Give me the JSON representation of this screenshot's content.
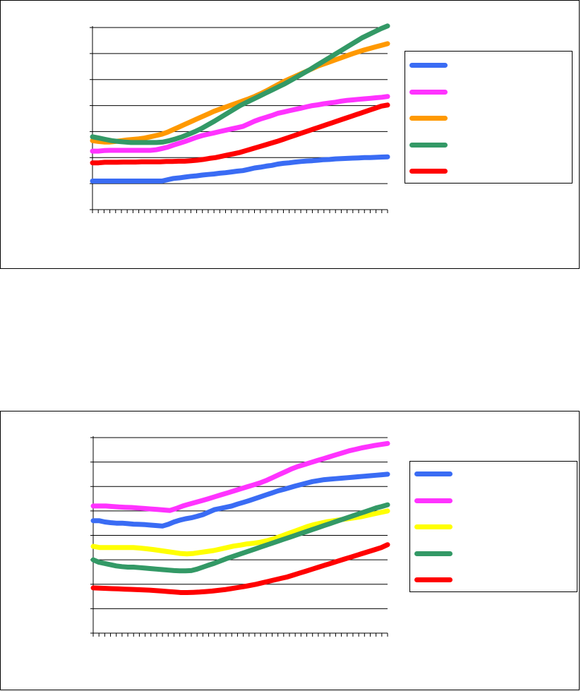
{
  "chart_data": [
    {
      "type": "line",
      "title": "",
      "xlabel": "",
      "ylabel": "",
      "x_count": 52,
      "ylim": [
        0,
        7
      ],
      "grid": true,
      "legend": "right",
      "series": [
        {
          "color": "#3a6cf4",
          "values": [
            1.1,
            1.1,
            1.1,
            1.1,
            1.1,
            1.1,
            1.1,
            1.1,
            1.1,
            1.1,
            1.1,
            1.1,
            1.1,
            1.15,
            1.2,
            1.22,
            1.25,
            1.28,
            1.3,
            1.33,
            1.35,
            1.37,
            1.4,
            1.42,
            1.45,
            1.48,
            1.5,
            1.55,
            1.6,
            1.63,
            1.67,
            1.7,
            1.75,
            1.78,
            1.8,
            1.83,
            1.85,
            1.87,
            1.88,
            1.9,
            1.92,
            1.93,
            1.95,
            1.96,
            1.97,
            1.98,
            1.99,
            2.0,
            2.0,
            2.01,
            2.02,
            2.03
          ]
        },
        {
          "color": "#ff33ff",
          "values": [
            2.25,
            2.25,
            2.27,
            2.28,
            2.28,
            2.28,
            2.28,
            2.28,
            2.28,
            2.28,
            2.28,
            2.3,
            2.35,
            2.4,
            2.48,
            2.55,
            2.62,
            2.7,
            2.78,
            2.85,
            2.9,
            2.95,
            3.0,
            3.05,
            3.1,
            3.15,
            3.2,
            3.3,
            3.4,
            3.48,
            3.55,
            3.62,
            3.7,
            3.75,
            3.8,
            3.85,
            3.9,
            3.95,
            4.0,
            4.03,
            4.07,
            4.1,
            4.13,
            4.17,
            4.2,
            4.22,
            4.24,
            4.26,
            4.28,
            4.3,
            4.32,
            4.35
          ]
        },
        {
          "color": "#ff9900",
          "values": [
            2.65,
            2.62,
            2.6,
            2.6,
            2.62,
            2.65,
            2.68,
            2.7,
            2.72,
            2.75,
            2.8,
            2.85,
            2.9,
            2.98,
            3.08,
            3.18,
            3.28,
            3.38,
            3.48,
            3.58,
            3.68,
            3.78,
            3.86,
            3.94,
            4.02,
            4.1,
            4.18,
            4.26,
            4.35,
            4.45,
            4.56,
            4.68,
            4.8,
            4.92,
            5.02,
            5.12,
            5.22,
            5.32,
            5.42,
            5.52,
            5.6,
            5.68,
            5.76,
            5.84,
            5.92,
            6.0,
            6.07,
            6.14,
            6.2,
            6.26,
            6.32,
            6.38
          ]
        },
        {
          "color": "#339966",
          "values": [
            2.8,
            2.75,
            2.7,
            2.65,
            2.62,
            2.6,
            2.58,
            2.58,
            2.58,
            2.58,
            2.58,
            2.6,
            2.65,
            2.72,
            2.8,
            2.9,
            3.0,
            3.12,
            3.26,
            3.4,
            3.55,
            3.7,
            3.85,
            4.0,
            4.12,
            4.24,
            4.36,
            4.48,
            4.6,
            4.72,
            4.84,
            4.98,
            5.12,
            5.26,
            5.4,
            5.55,
            5.7,
            5.85,
            6.0,
            6.15,
            6.3,
            6.45,
            6.6,
            6.72,
            6.84,
            6.96,
            7.06
          ]
        },
        {
          "color": "#ff0000",
          "values": [
            1.8,
            1.8,
            1.82,
            1.82,
            1.82,
            1.83,
            1.83,
            1.83,
            1.84,
            1.84,
            1.84,
            1.84,
            1.85,
            1.85,
            1.86,
            1.86,
            1.88,
            1.9,
            1.93,
            1.97,
            2.0,
            2.05,
            2.1,
            2.15,
            2.2,
            2.27,
            2.34,
            2.41,
            2.48,
            2.55,
            2.62,
            2.7,
            2.78,
            2.86,
            2.94,
            3.02,
            3.1,
            3.18,
            3.26,
            3.34,
            3.42,
            3.5,
            3.58,
            3.66,
            3.74,
            3.82,
            3.9,
            3.98,
            4.02
          ]
        }
      ]
    },
    {
      "type": "line",
      "title": "",
      "xlabel": "",
      "ylabel": "",
      "x_count": 52,
      "ylim": [
        0,
        8
      ],
      "grid": true,
      "legend": "right",
      "series": [
        {
          "color": "#3a6cf4",
          "values": [
            4.6,
            4.6,
            4.55,
            4.52,
            4.5,
            4.5,
            4.48,
            4.46,
            4.45,
            4.44,
            4.42,
            4.4,
            4.38,
            4.45,
            4.55,
            4.62,
            4.68,
            4.72,
            4.78,
            4.85,
            4.95,
            5.05,
            5.1,
            5.15,
            5.2,
            5.28,
            5.35,
            5.42,
            5.5,
            5.58,
            5.66,
            5.74,
            5.82,
            5.88,
            5.95,
            6.02,
            6.08,
            6.14,
            6.2,
            6.24,
            6.28,
            6.3,
            6.32,
            6.34,
            6.36,
            6.38,
            6.4,
            6.42,
            6.44,
            6.46,
            6.48,
            6.5
          ]
        },
        {
          "color": "#ff33ff",
          "values": [
            5.2,
            5.2,
            5.2,
            5.18,
            5.16,
            5.15,
            5.14,
            5.12,
            5.1,
            5.08,
            5.06,
            5.04,
            5.02,
            5.1,
            5.2,
            5.28,
            5.35,
            5.42,
            5.5,
            5.58,
            5.66,
            5.74,
            5.82,
            5.9,
            5.98,
            6.06,
            6.14,
            6.24,
            6.36,
            6.48,
            6.6,
            6.72,
            6.82,
            6.9,
            6.98,
            7.06,
            7.14,
            7.22,
            7.3,
            7.38,
            7.46,
            7.52,
            7.58,
            7.63,
            7.68,
            7.72,
            7.76
          ]
        },
        {
          "color": "#ffff00",
          "values": [
            3.55,
            3.5,
            3.5,
            3.5,
            3.5,
            3.5,
            3.5,
            3.48,
            3.45,
            3.42,
            3.38,
            3.34,
            3.3,
            3.26,
            3.24,
            3.26,
            3.3,
            3.34,
            3.38,
            3.44,
            3.5,
            3.56,
            3.6,
            3.65,
            3.68,
            3.72,
            3.78,
            3.86,
            3.96,
            4.06,
            4.16,
            4.26,
            4.36,
            4.44,
            4.5,
            4.56,
            4.6,
            4.64,
            4.68,
            4.72,
            4.76,
            4.82,
            4.88,
            4.94,
            5.0
          ]
        },
        {
          "color": "#339966",
          "values": [
            3.0,
            2.9,
            2.85,
            2.8,
            2.75,
            2.72,
            2.7,
            2.7,
            2.68,
            2.66,
            2.64,
            2.62,
            2.6,
            2.58,
            2.56,
            2.55,
            2.55,
            2.56,
            2.62,
            2.7,
            2.78,
            2.86,
            2.95,
            3.04,
            3.12,
            3.2,
            3.28,
            3.36,
            3.44,
            3.52,
            3.6,
            3.68,
            3.76,
            3.84,
            3.92,
            4.0,
            4.08,
            4.16,
            4.24,
            4.32,
            4.4,
            4.48,
            4.56,
            4.64,
            4.72,
            4.8,
            4.88,
            4.96,
            5.04,
            5.12,
            5.18,
            5.25
          ]
        },
        {
          "color": "#ff0000",
          "values": [
            1.85,
            1.84,
            1.83,
            1.82,
            1.81,
            1.8,
            1.79,
            1.78,
            1.77,
            1.76,
            1.74,
            1.72,
            1.7,
            1.68,
            1.66,
            1.66,
            1.67,
            1.68,
            1.7,
            1.72,
            1.75,
            1.78,
            1.82,
            1.86,
            1.9,
            1.95,
            2.0,
            2.06,
            2.12,
            2.18,
            2.24,
            2.3,
            2.38,
            2.46,
            2.54,
            2.62,
            2.7,
            2.78,
            2.86,
            2.94,
            3.02,
            3.1,
            3.18,
            3.26,
            3.34,
            3.42,
            3.5,
            3.62
          ]
        }
      ]
    }
  ]
}
